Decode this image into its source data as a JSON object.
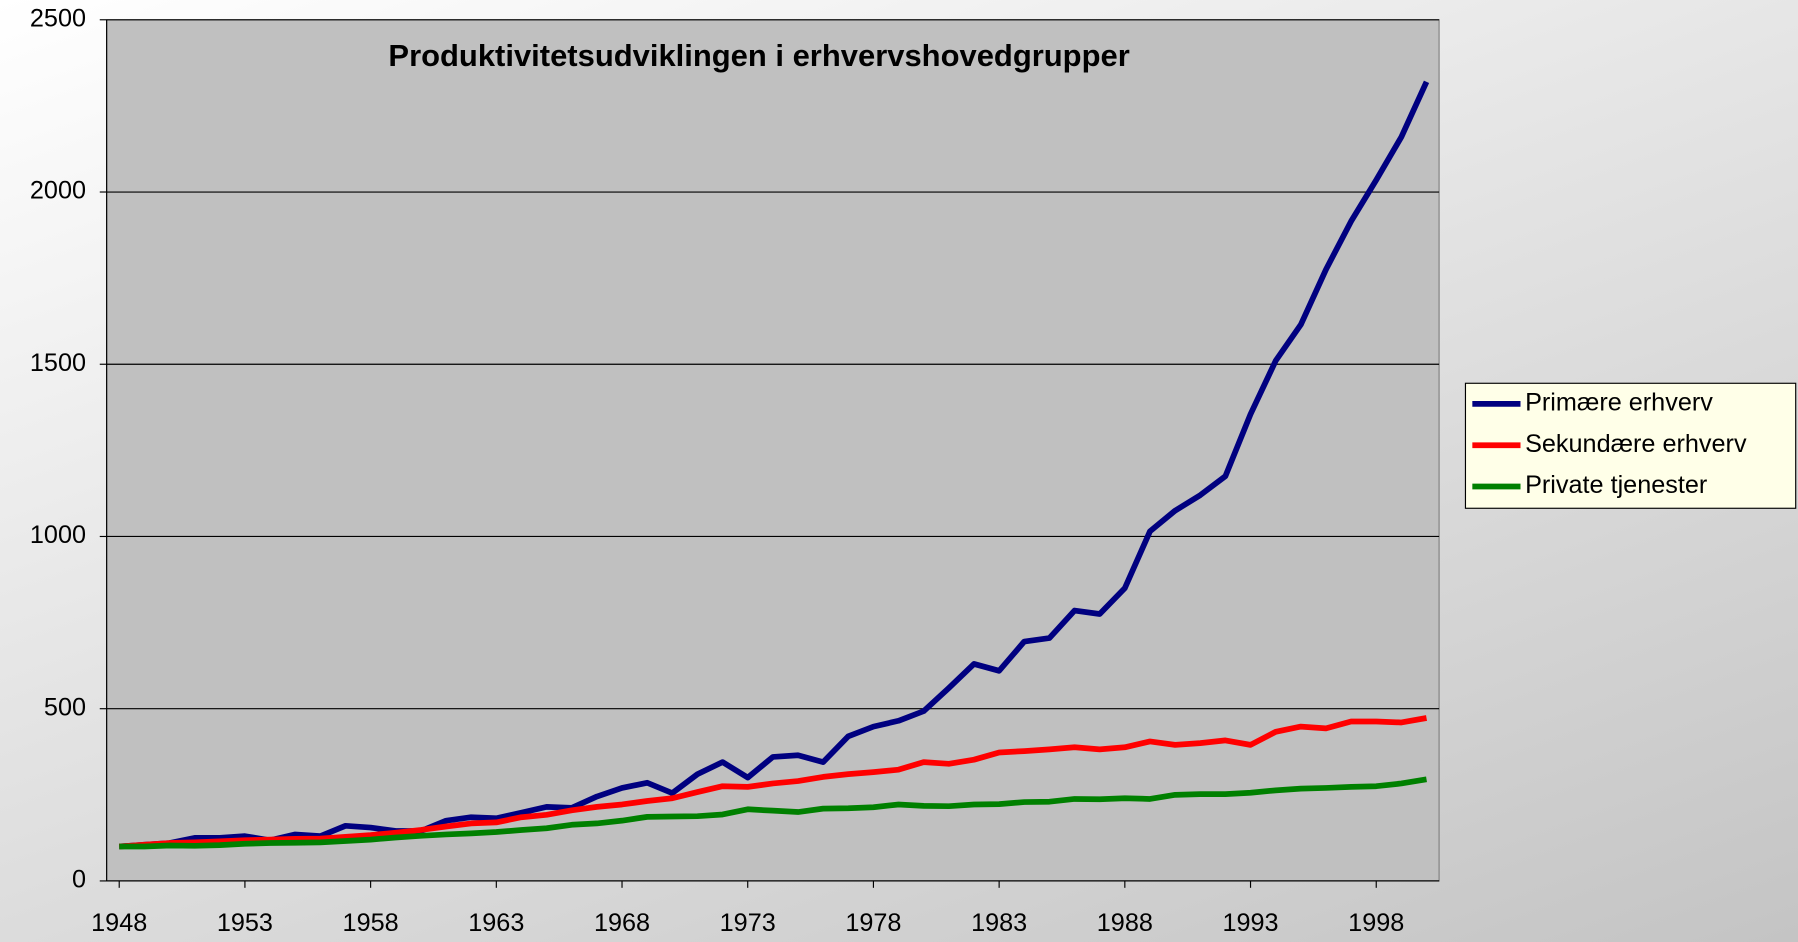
{
  "chart_data": {
    "type": "line",
    "title": "Produktivitetsudviklingen i erhvervshovedgrupper",
    "x": [
      1948,
      1949,
      1950,
      1951,
      1952,
      1953,
      1954,
      1955,
      1956,
      1957,
      1958,
      1959,
      1960,
      1961,
      1962,
      1963,
      1964,
      1965,
      1966,
      1967,
      1968,
      1969,
      1970,
      1971,
      1972,
      1973,
      1974,
      1975,
      1976,
      1977,
      1978,
      1979,
      1980,
      1981,
      1982,
      1983,
      1984,
      1985,
      1986,
      1987,
      1988,
      1989,
      1990,
      1991,
      1992,
      1993,
      1994,
      1995,
      1996,
      1997,
      1998,
      1999,
      2000
    ],
    "series": [
      {
        "name": "Primære erhverv",
        "color": "#000080",
        "values": [
          100,
          105,
          110,
          125,
          125,
          130,
          118,
          135,
          130,
          160,
          155,
          145,
          145,
          175,
          185,
          182,
          198,
          215,
          212,
          245,
          270,
          285,
          255,
          310,
          345,
          300,
          360,
          365,
          345,
          420,
          448,
          465,
          493,
          560,
          630,
          610,
          695,
          705,
          785,
          775,
          850,
          1015,
          1075,
          1120,
          1175,
          1355,
          1510,
          1615,
          1775,
          1915,
          2035,
          2160,
          2320
        ]
      },
      {
        "name": "Sekundære erhverv",
        "color": "#ff0000",
        "values": [
          100,
          105,
          110,
          112,
          115,
          118,
          120,
          122,
          123,
          128,
          133,
          140,
          148,
          158,
          167,
          170,
          185,
          192,
          205,
          215,
          222,
          232,
          240,
          258,
          275,
          273,
          283,
          290,
          302,
          310,
          316,
          323,
          345,
          340,
          352,
          373,
          377,
          382,
          388,
          382,
          388,
          405,
          395,
          400,
          408,
          395,
          433,
          448,
          443,
          463,
          463,
          460,
          473
        ]
      },
      {
        "name": "Private tjenester",
        "color": "#008000",
        "values": [
          100,
          100,
          103,
          102,
          104,
          108,
          110,
          111,
          112,
          116,
          120,
          126,
          131,
          135,
          138,
          142,
          148,
          153,
          163,
          167,
          175,
          186,
          187,
          188,
          193,
          208,
          204,
          200,
          210,
          211,
          214,
          222,
          218,
          217,
          222,
          223,
          229,
          230,
          238,
          237,
          240,
          238,
          250,
          252,
          252,
          256,
          263,
          268,
          270,
          273,
          275,
          283,
          295
        ]
      }
    ],
    "xlim": [
      1947.5,
      2000.5
    ],
    "xticks": [
      1948,
      1953,
      1958,
      1963,
      1968,
      1973,
      1978,
      1983,
      1988,
      1993,
      1998
    ],
    "ylim": [
      0,
      2500
    ],
    "yticks": [
      0,
      500,
      1000,
      1500,
      2000,
      2500
    ],
    "grid": true,
    "legend": "right"
  }
}
